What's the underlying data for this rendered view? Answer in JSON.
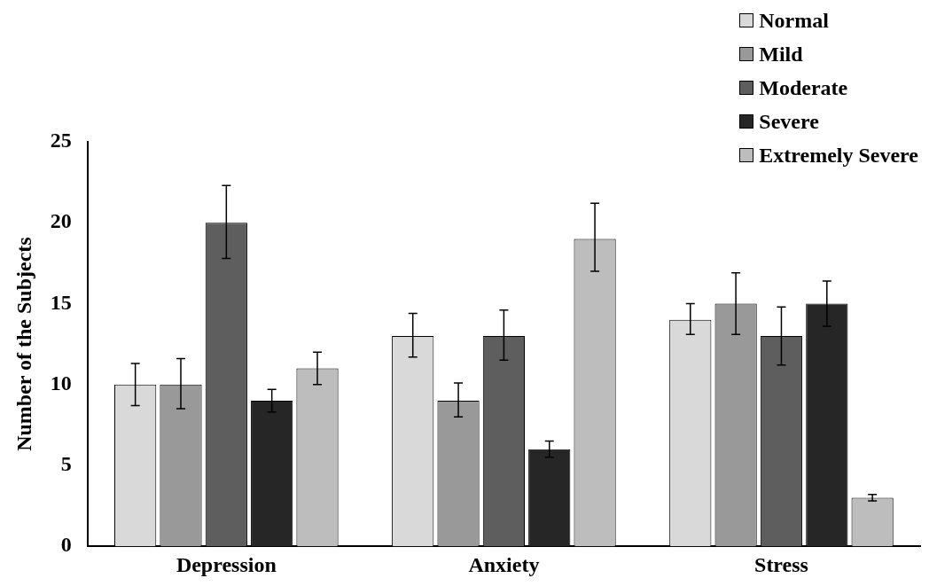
{
  "chart_data": {
    "type": "bar",
    "ylabel": "Number of the Subjects",
    "categories": [
      "Depression",
      "Anxiety",
      "Stress"
    ],
    "series": [
      {
        "name": "Normal",
        "color": "#d9d9d9",
        "values": [
          10,
          13,
          14
        ],
        "errors": [
          [
            8.7,
            11.3
          ],
          [
            11.7,
            14.4
          ],
          [
            13.1,
            15
          ]
        ]
      },
      {
        "name": "Mild",
        "color": "#999999",
        "values": [
          10,
          9,
          15
        ],
        "errors": [
          [
            8.5,
            11.6
          ],
          [
            8,
            10.1
          ],
          [
            13.1,
            16.9
          ]
        ]
      },
      {
        "name": "Moderate",
        "color": "#5e5e5e",
        "values": [
          20,
          13,
          13
        ],
        "errors": [
          [
            17.8,
            22.3
          ],
          [
            11.5,
            14.6
          ],
          [
            11.2,
            14.8
          ]
        ]
      },
      {
        "name": "Severe",
        "color": "#262626",
        "values": [
          9,
          6,
          15
        ],
        "errors": [
          [
            8.3,
            9.7
          ],
          [
            5.5,
            6.5
          ],
          [
            13.6,
            16.4
          ]
        ]
      },
      {
        "name": "Extremely Severe",
        "color": "#bdbdbd",
        "values": [
          11,
          19,
          3
        ],
        "errors": [
          [
            10,
            12
          ],
          [
            17,
            21.2
          ],
          [
            2.8,
            3.2
          ]
        ]
      }
    ],
    "ylim": [
      0,
      25
    ],
    "yticks": [
      0,
      5,
      10,
      15,
      20,
      25
    ],
    "grid": false,
    "legend": "top right"
  }
}
